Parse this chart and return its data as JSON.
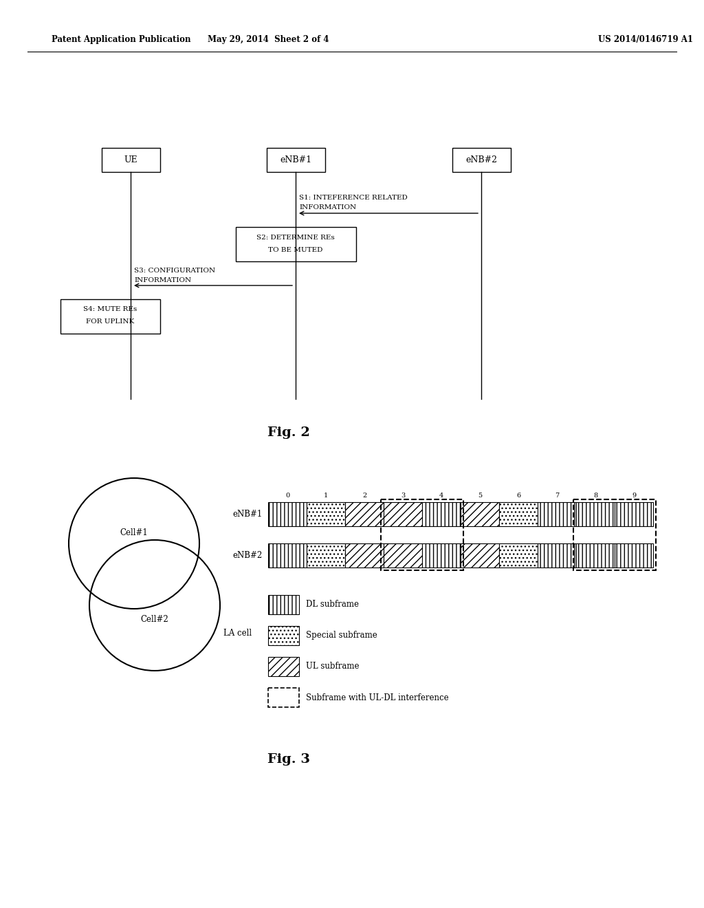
{
  "header_left": "Patent Application Publication",
  "header_mid": "May 29, 2014  Sheet 2 of 4",
  "header_right": "US 2014/0146719 A1",
  "fig2_title": "Fig. 2",
  "fig3_title": "Fig. 3",
  "entities": [
    "UE",
    "eNB#1",
    "eNB#2"
  ],
  "s1_label_line1": "S1: INTEFERENCE RELATED",
  "s1_label_line2": "INFORMATION",
  "s2_label_line1": "S2: DETERMINE REs",
  "s2_label_line2": "TO BE MUTED",
  "s3_label_line1": "S3: CONFIGURATION",
  "s3_label_line2": "INFORMATION",
  "s4_label_line1": "S4: MUTE REs",
  "s4_label_line2": "FOR UPLINK",
  "enb1_patterns": [
    "DL",
    "SP",
    "UL",
    "UL",
    "DL",
    "UL",
    "SP",
    "DL",
    "DL",
    "DL"
  ],
  "enb2_patterns": [
    "DL",
    "SP",
    "UL",
    "UL",
    "DL",
    "UL",
    "SP",
    "DL",
    "DL",
    "DL"
  ],
  "bg_color": "#ffffff"
}
